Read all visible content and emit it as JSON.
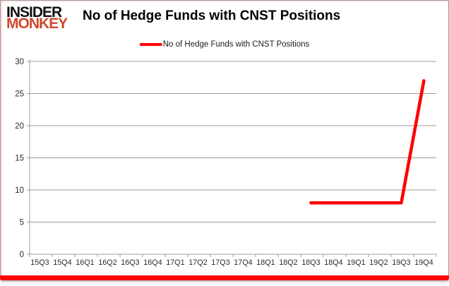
{
  "header": {
    "logo": {
      "line1": "INSIDER",
      "line2": "MONKEY",
      "color": "#cd4a2d"
    },
    "title": "No of Hedge Funds with CNST Positions"
  },
  "chart_data": {
    "type": "line",
    "title": "No of Hedge Funds with CNST Positions",
    "categories": [
      "15Q3",
      "15Q4",
      "16Q1",
      "16Q2",
      "16Q3",
      "16Q4",
      "17Q1",
      "17Q2",
      "17Q3",
      "17Q4",
      "18Q1",
      "18Q2",
      "18Q3",
      "18Q4",
      "19Q1",
      "19Q2",
      "19Q3",
      "19Q4"
    ],
    "series": [
      {
        "name": "No of Hedge Funds with CNST Positions",
        "values": [
          null,
          null,
          null,
          null,
          null,
          null,
          null,
          null,
          null,
          null,
          null,
          null,
          8,
          8,
          8,
          8,
          8,
          27
        ]
      }
    ],
    "xlabel": "",
    "ylabel": "",
    "ylim": [
      0,
      30
    ],
    "ytick_step": 5,
    "yticks": [
      0,
      5,
      10,
      15,
      20,
      25,
      30
    ],
    "grid": true,
    "legend_position": "top",
    "colors": {
      "line": "#fe0000",
      "grid": "#9c9c9c",
      "axis": "#9c9c9c",
      "tick_label": "#2b2b2b",
      "accent_bar": "#fb0404"
    }
  }
}
